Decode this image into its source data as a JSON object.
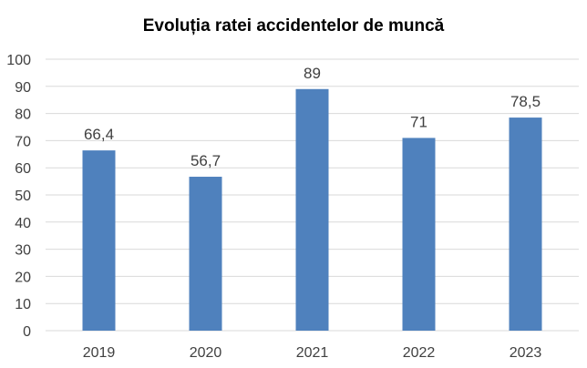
{
  "chart_data": {
    "type": "bar",
    "title": "Evoluția ratei accidentelor de muncă",
    "categories": [
      "2019",
      "2020",
      "2021",
      "2022",
      "2023"
    ],
    "values": [
      66.4,
      56.7,
      89,
      71,
      78.5
    ],
    "data_labels": [
      "66,4",
      "56,7",
      "89",
      "71",
      "78,5"
    ],
    "y_ticks": [
      "0",
      "10",
      "20",
      "30",
      "40",
      "50",
      "60",
      "70",
      "80",
      "90",
      "100"
    ],
    "ylim": [
      0,
      100
    ],
    "grid": true,
    "legend": "none",
    "bar_color": "#4F81BD",
    "grid_color": "#D9D9D9"
  }
}
